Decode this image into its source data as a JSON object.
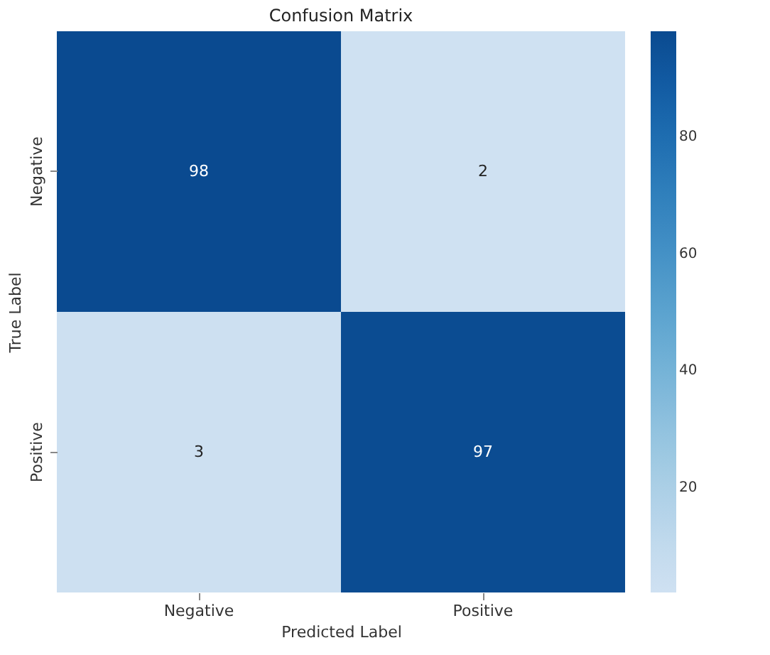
{
  "chart_data": {
    "type": "heatmap",
    "title": "Confusion Matrix",
    "xlabel": "Predicted Label",
    "ylabel": "True Label",
    "categories": [
      "Negative",
      "Positive"
    ],
    "y_categories": [
      "Negative",
      "Positive"
    ],
    "cells": [
      [
        98,
        2
      ],
      [
        3,
        97
      ]
    ],
    "clim": [
      2,
      98
    ],
    "cticks": [
      20,
      40,
      60,
      80
    ],
    "data_labels": true
  }
}
